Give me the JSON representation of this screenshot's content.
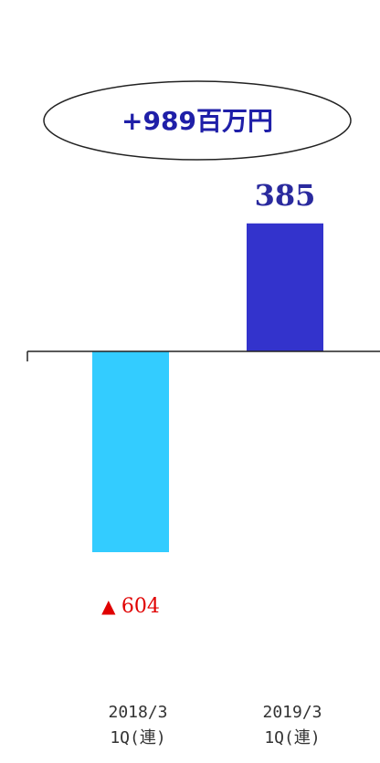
{
  "badge": {
    "text": "+989百万円"
  },
  "colors": {
    "bar_prev": "#33ccff",
    "bar_curr": "#3333cc",
    "badge_text": "#1f1fa8",
    "negative_label": "#e00000",
    "positive_label": "#2a2a9e",
    "axis": "#222222"
  },
  "chart_data": {
    "type": "bar",
    "categories": [
      "2018/3\n1Q(連)",
      "2019/3\n1Q(連)"
    ],
    "values": [
      -604,
      385
    ],
    "data_labels": [
      "▲ 604",
      "385"
    ],
    "title": "",
    "xlabel": "",
    "ylabel": "",
    "ylim": [
      -850,
      500
    ],
    "grid": false,
    "legend": "none"
  }
}
